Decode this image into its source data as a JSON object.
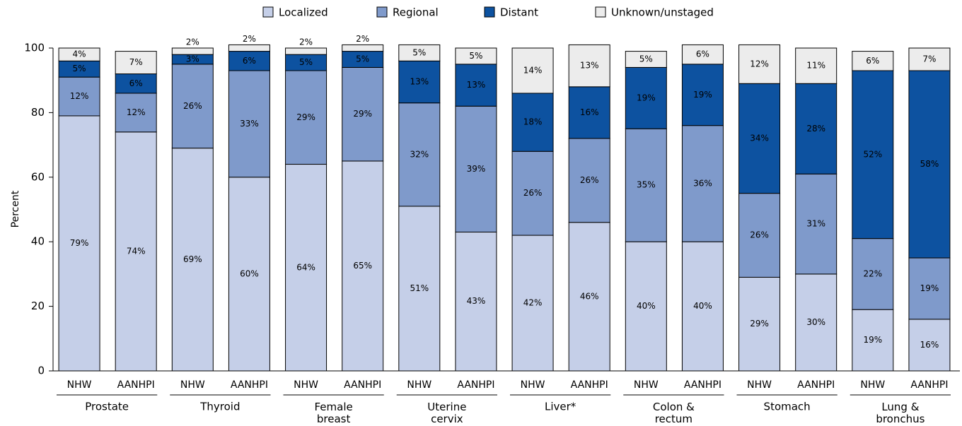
{
  "chart_data": {
    "type": "stacked_bar",
    "y_label": "Percent",
    "categories": [
      "NHW",
      "AANHPI",
      "NHW",
      "AANHPI",
      "NHW",
      "AANHPI",
      "NHW",
      "AANHPI",
      "NHW",
      "AANHPI",
      "NHW",
      "AANHPI",
      "NHW",
      "AANHPI",
      "NHW",
      "AANHPI"
    ],
    "groups": [
      "Prostate",
      "Thyroid",
      "Female breast",
      "Uterine cervix",
      "Liver*",
      "Colon & rectum",
      "Stomach",
      "Lung & bronchus"
    ],
    "series": [
      {
        "name": "Localized",
        "color": "#c5cfe8",
        "text_color": "#000000",
        "values": [
          79,
          74,
          69,
          60,
          64,
          65,
          51,
          43,
          42,
          46,
          40,
          40,
          29,
          30,
          19,
          16
        ],
        "value_labels": [
          "79%",
          "74%",
          "69%",
          "60%",
          "64%",
          "65%",
          "51%",
          "43%",
          "42%",
          "46%",
          "40%",
          "40%",
          "29%",
          "30%",
          "19%",
          "16%"
        ]
      },
      {
        "name": "Regional",
        "color": "#7f9acb",
        "text_color": "#000000",
        "values": [
          12,
          12,
          26,
          33,
          29,
          29,
          32,
          39,
          26,
          26,
          35,
          36,
          26,
          31,
          22,
          19
        ],
        "value_labels": [
          "12%",
          "12%",
          "26%",
          "33%",
          "29%",
          "29%",
          "32%",
          "39%",
          "26%",
          "26%",
          "35%",
          "36%",
          "26%",
          "31%",
          "22%",
          "19%"
        ]
      },
      {
        "name": "Distant",
        "color": "#0d52a0",
        "text_color": "#ffffff",
        "values": [
          5,
          6,
          3,
          6,
          5,
          5,
          13,
          13,
          18,
          16,
          19,
          19,
          34,
          28,
          52,
          58
        ],
        "value_labels": [
          "5%",
          "6%",
          "3%",
          "6%",
          "5%",
          "5%",
          "13%",
          "13%",
          "18%",
          "16%",
          "19%",
          "19%",
          "34%",
          "28%",
          "52%",
          "58%"
        ]
      },
      {
        "name": "Unknown/unstaged",
        "color": "#ececec",
        "text_color": "#000000",
        "values": [
          4,
          7,
          2,
          2,
          2,
          2,
          5,
          5,
          14,
          13,
          5,
          6,
          12,
          11,
          6,
          7
        ],
        "value_labels": [
          "4%",
          "7%",
          "2%",
          "2%",
          "2%",
          "2%",
          "5%",
          "5%",
          "14%",
          "13%",
          "5%",
          "6%",
          "12%",
          "11%",
          "6%",
          "7%"
        ]
      }
    ],
    "ylim": [
      0,
      100
    ],
    "yticks": [
      0,
      20,
      40,
      60,
      80,
      100
    ],
    "grid": false,
    "legend": "top"
  }
}
